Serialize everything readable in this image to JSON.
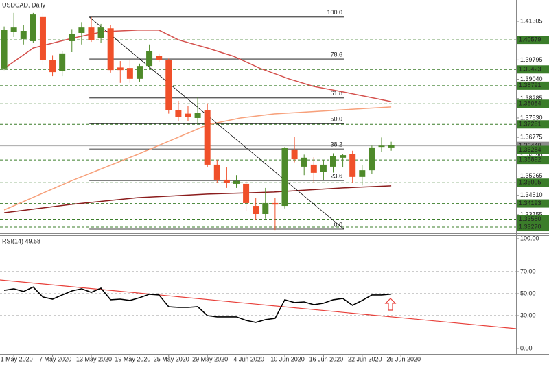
{
  "chart_data": [
    {
      "type": "candlestick",
      "title": "USDCAD, Daily",
      "categories": [
        null,
        "1 May 2020",
        null,
        null,
        null,
        "7 May 2020",
        null,
        null,
        null,
        "13 May 2020",
        null,
        null,
        null,
        "19 May 2020",
        null,
        null,
        null,
        "25 May 2020",
        null,
        null,
        null,
        "29 May 2020",
        null,
        null,
        null,
        "4 Jun 2020",
        null,
        null,
        null,
        "10 Jun 2020",
        null,
        null,
        null,
        "16 Jun 2020",
        null,
        null,
        null,
        "22 Jun 2020",
        null,
        null,
        null,
        "26 Jun 2020"
      ],
      "open": [
        1.3946,
        1.4088,
        1.4061,
        1.4053,
        1.4147,
        1.3978,
        1.3935,
        1.4053,
        1.4085,
        1.4106,
        1.4066,
        1.4103,
        1.395,
        1.3948,
        1.3906,
        1.3956,
        1.3994,
        1.3978,
        1.3785,
        1.377,
        1.3753,
        1.3785,
        1.3571,
        1.3512,
        1.3496,
        1.3496,
        1.341,
        1.3378,
        1.3421,
        1.341,
        1.363,
        1.3563,
        1.3571,
        1.3544,
        1.3563,
        1.3598,
        1.3611,
        1.3523,
        1.3549,
        1.364,
        1.3638,
        null
      ],
      "high": [
        1.411,
        1.4163,
        1.4115,
        1.4163,
        1.4163,
        1.3998,
        1.4013,
        1.41,
        1.4127,
        1.4147,
        1.412,
        1.4115,
        1.3975,
        1.398,
        1.3965,
        1.404,
        1.4005,
        1.3985,
        1.382,
        1.38,
        1.3835,
        1.381,
        1.359,
        1.356,
        1.353,
        1.351,
        1.344,
        1.348,
        1.344,
        1.364,
        1.3678,
        1.361,
        1.36,
        1.359,
        1.3615,
        1.3612,
        1.3625,
        1.357,
        1.3645,
        1.3677,
        1.366,
        null
      ],
      "low": [
        1.394,
        1.4069,
        1.404,
        1.4045,
        1.396,
        1.3916,
        1.3916,
        1.401,
        1.404,
        1.405,
        1.4045,
        1.393,
        1.389,
        1.389,
        1.3895,
        1.3945,
        1.397,
        1.377,
        1.374,
        1.374,
        1.373,
        1.356,
        1.35,
        1.348,
        1.348,
        1.339,
        1.3355,
        1.336,
        1.3316,
        1.34,
        1.358,
        1.353,
        1.35,
        1.351,
        1.354,
        1.356,
        1.35,
        1.349,
        1.3535,
        1.362,
        1.3625,
        null
      ],
      "close": [
        1.4098,
        1.4106,
        1.4093,
        1.4157,
        1.3978,
        1.3932,
        1.4005,
        1.408,
        1.4106,
        1.4058,
        1.4106,
        1.394,
        1.394,
        1.3906,
        1.3956,
        1.4013,
        1.3978,
        1.3785,
        1.3758,
        1.3758,
        1.3772,
        1.3571,
        1.3512,
        1.3501,
        1.3507,
        1.3421,
        1.3378,
        1.3421,
        1.3415,
        1.3635,
        1.3592,
        1.3598,
        1.3539,
        1.3571,
        1.3603,
        1.3608,
        1.3523,
        1.3549,
        1.3638,
        1.3645,
        1.3648,
        null
      ],
      "up_color": "#4e8a2a",
      "down_color": "#f0502a",
      "series": [
        {
          "color": "#d4504c",
          "x": [
            0,
            3,
            6.7,
            10.2,
            13.8,
            16,
            18,
            21,
            23.7,
            26.5,
            29.4,
            32,
            35,
            37.9,
            40
          ],
          "values": [
            1.3946,
            1.4026,
            1.4061,
            1.409,
            1.4096,
            1.4096,
            1.4058,
            1.4026,
            1.3994,
            1.3946,
            1.3906,
            1.3876,
            1.3855,
            1.3833,
            1.3817
          ]
        },
        {
          "color": "#f7a07a",
          "x": [
            0,
            6.7,
            13.8,
            21,
            24.4,
            27.9,
            31.5,
            35,
            40
          ],
          "values": [
            1.3394,
            1.3504,
            1.3611,
            1.3726,
            1.3753,
            1.3769,
            1.3777,
            1.3785,
            1.3796
          ]
        },
        {
          "color": "#8b1c1c",
          "x": [
            0,
            6.7,
            13.8,
            21,
            27.9,
            35,
            40
          ],
          "values": [
            1.3383,
            1.3415,
            1.3442,
            1.3456,
            1.3464,
            1.348,
            1.3488
          ]
        }
      ],
      "fibonacci": {
        "x": [
          8.8,
          35.1
        ],
        "levels": [
          {
            "label": "100.0",
            "price": 1.4147
          },
          {
            "label": "78.6",
            "price": 1.3983
          },
          {
            "label": "61.8",
            "price": 1.3831
          },
          {
            "label": "50.0",
            "price": 1.3731
          },
          {
            "label": "38.2",
            "price": 1.3632
          },
          {
            "label": "23.6",
            "price": 1.3509
          },
          {
            "label": "0.0",
            "price": 1.3319
          }
        ]
      },
      "trendline": {
        "x": [
          8.8,
          35.1
        ],
        "values": [
          1.4147,
          1.3319
        ],
        "color": "#000000"
      },
      "levels": [
        1.40579,
        1.39423,
        1.38791,
        1.38084,
        1.37281,
        1.36284,
        1.35892,
        1.35005,
        1.34193,
        {
          "value": 1.3358,
          "label": "1.33580"
        },
        {
          "value": 1.3327,
          "label": "1.33270"
        }
      ],
      "level_color": "#3b7d2a",
      "last_price": {
        "value": 1.3644,
        "label": "1.36440"
      },
      "xlim": [
        -0.43,
        52.9
      ],
      "ylim": [
        1.3303,
        1.42135
      ],
      "yticks": [
        1.41305,
        1.39795,
        {
          "value": 1.3904,
          "label": "1.39040"
        },
        1.38285,
        {
          "value": 1.3753,
          "label": "1.37530"
        },
        1.36775,
        {
          "value": 1.3602,
          "label": "1.36020"
        },
        1.35265,
        {
          "value": 1.3451,
          "label": "1.34510"
        },
        1.33755
      ]
    },
    {
      "type": "line",
      "title": "RSI(14) 49.58",
      "color": "#000000",
      "values": [
        53,
        54.4,
        51.9,
        56,
        46.9,
        45,
        48.8,
        52.5,
        54.4,
        51.2,
        55,
        44.4,
        45,
        43.8,
        46.3,
        49.4,
        48.8,
        38.1,
        37.5,
        37.5,
        38.1,
        30,
        28.8,
        28.8,
        28.8,
        25.6,
        23.8,
        26.3,
        27.5,
        44.4,
        41.9,
        42.5,
        40,
        41.3,
        44.4,
        45.6,
        39.4,
        43.8,
        48.8,
        48.8,
        49.58,
        null
      ],
      "trendline": {
        "x": [
          -0.43,
          52.9
        ],
        "values": [
          62.5,
          18.1
        ],
        "color": "#e8403a"
      },
      "ylim": [
        -5,
        103.1
      ],
      "yticks": [
        {
          "value": 100,
          "label": "100.00"
        },
        {
          "value": 70,
          "label": "70.00"
        },
        {
          "value": 50,
          "label": "50.00"
        },
        {
          "value": 30,
          "label": "30.00"
        },
        {
          "value": 0,
          "label": "0.00"
        }
      ]
    }
  ]
}
